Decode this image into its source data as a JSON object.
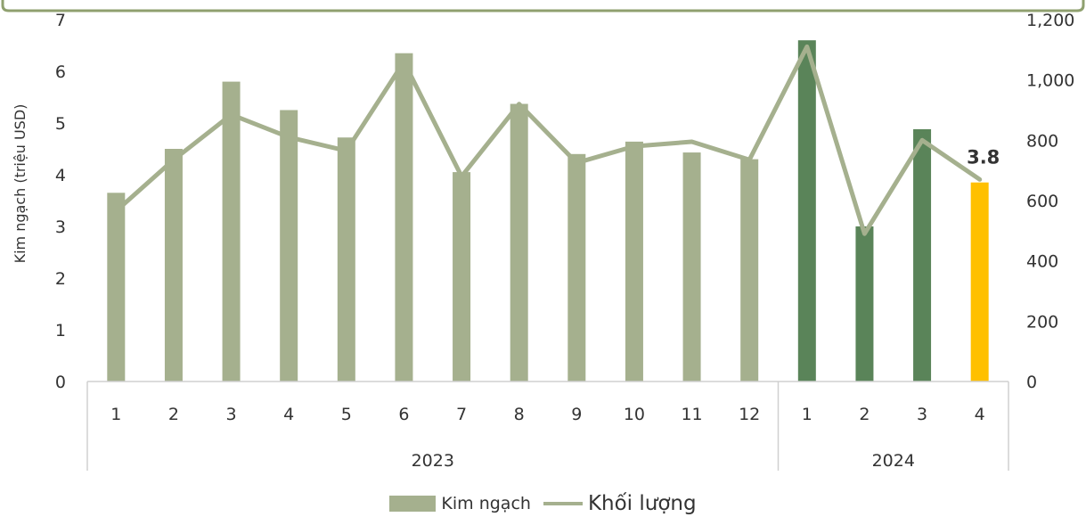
{
  "colors": {
    "bar_2023": "#a5b08e",
    "bar_2024": "#5a8459",
    "bar_highlight": "#ffc000",
    "line": "#a5b08e",
    "frame": "#8fa06f",
    "axis": "#d0d0d0"
  },
  "chart_data": {
    "type": "bar",
    "ylabel": "Kim ngạch (triệu USD)",
    "ylim": [
      0,
      7
    ],
    "y_ticks": [
      0,
      1,
      2,
      3,
      4,
      5,
      6,
      7
    ],
    "y2lim": [
      0,
      1200
    ],
    "y2_ticks": [
      "0",
      "200",
      "400",
      "600",
      "800",
      "1,000",
      "1,200"
    ],
    "y2_tick_values": [
      0,
      200,
      400,
      600,
      800,
      1000,
      1200
    ],
    "categories": [
      "1",
      "2",
      "3",
      "4",
      "5",
      "6",
      "7",
      "8",
      "9",
      "10",
      "11",
      "12",
      "1",
      "2",
      "3",
      "4"
    ],
    "groups": [
      {
        "label": "2023",
        "count": 12
      },
      {
        "label": "2024",
        "count": 4
      }
    ],
    "series": [
      {
        "name": "Kim ngạch",
        "type": "bar",
        "axis": "left",
        "values": [
          3.65,
          4.5,
          5.8,
          5.25,
          4.72,
          6.35,
          4.05,
          5.37,
          4.4,
          4.64,
          4.43,
          4.3,
          6.6,
          3.0,
          4.88,
          3.85
        ]
      },
      {
        "name": "Khối lượng",
        "type": "line",
        "axis": "right",
        "values": [
          565,
          735,
          885,
          810,
          765,
          1060,
          680,
          920,
          725,
          780,
          795,
          735,
          1110,
          490,
          800,
          670
        ]
      }
    ],
    "data_labels": [
      {
        "index": 15,
        "text": "3.8"
      }
    ],
    "legend": "bottom"
  }
}
